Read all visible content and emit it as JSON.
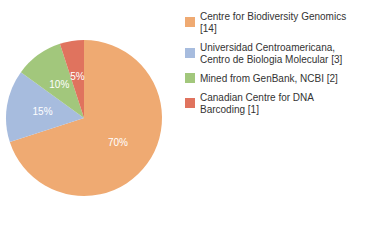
{
  "chart_data": {
    "type": "pie",
    "categories": [
      "Centre for Biodiversity Genomics [14]",
      "Universidad Centroamericana, Centro de Biologia Molecular [3]",
      "Mined from GenBank, NCBI [2]",
      "Canadian Centre for DNA Barcoding [1]"
    ],
    "values": [
      70,
      15,
      10,
      5
    ],
    "value_labels": [
      "70%",
      "15%",
      "10%",
      "5%"
    ],
    "colors": [
      "#efaa72",
      "#a7bcde",
      "#a2c77c",
      "#e0735e"
    ],
    "data_labels": true,
    "legend": "top-right"
  }
}
